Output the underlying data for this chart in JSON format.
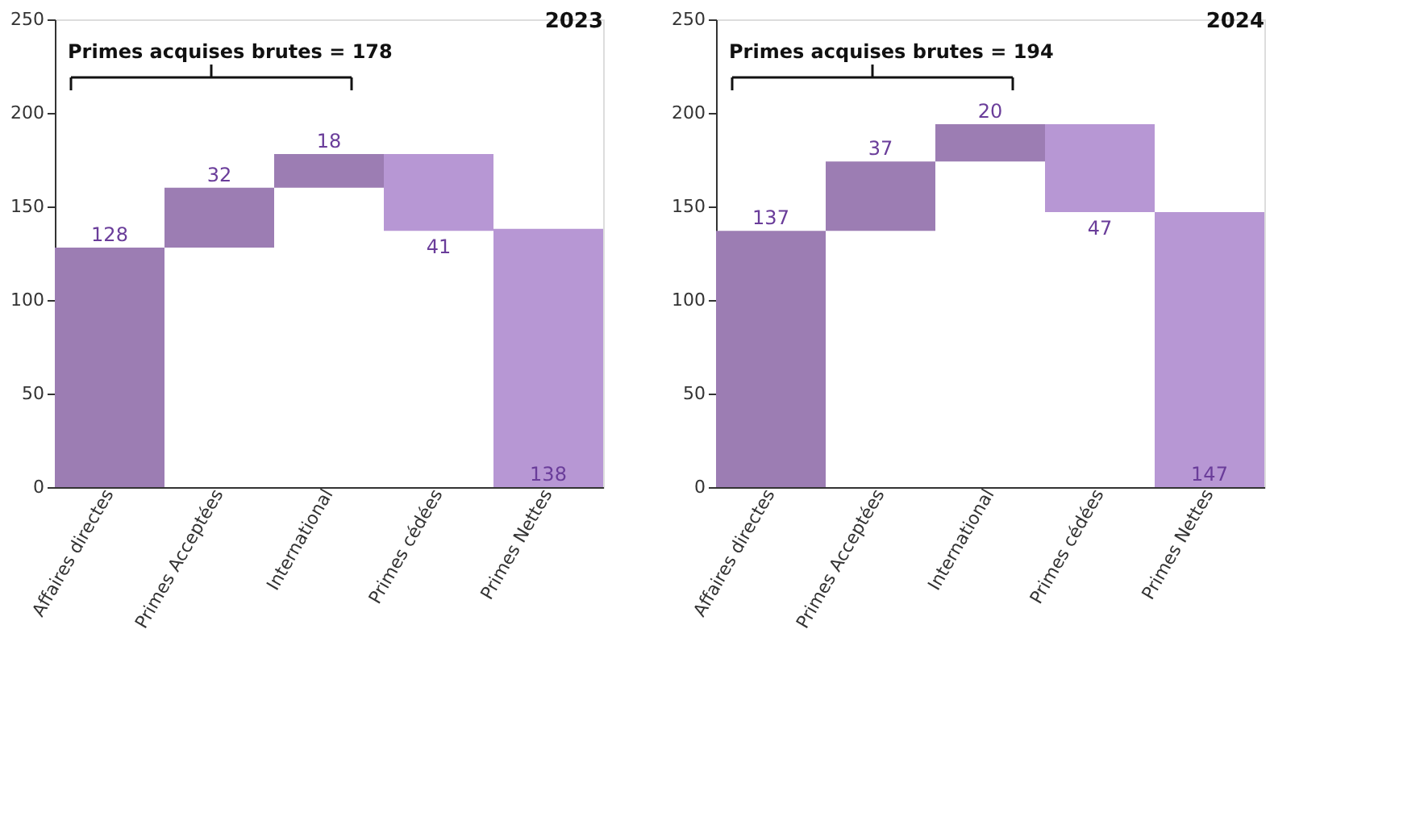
{
  "chart_data": [
    {
      "type": "bar",
      "title": "2023",
      "categories": [
        "Affaires directes",
        "Primes Acceptées",
        "International",
        "Primes cédées",
        "Primes Nettes"
      ],
      "values": [
        128,
        32,
        18,
        -41,
        138
      ],
      "base": [
        0,
        128,
        160,
        178,
        0
      ],
      "colors": [
        "#9c7db3",
        "#9c7db3",
        "#9c7db3",
        "#b797d4",
        "#b797d4"
      ],
      "value_labels": [
        "128",
        "32",
        "18",
        "41",
        "138"
      ],
      "ylim": [
        0,
        250
      ],
      "yticks": [
        0,
        50,
        100,
        150,
        200,
        250
      ],
      "annotations": [
        "Primes acquises brutes = 178"
      ]
    },
    {
      "type": "bar",
      "title": "2024",
      "categories": [
        "Affaires directes",
        "Primes Acceptées",
        "International",
        "Primes cédées",
        "Primes Nettes"
      ],
      "values": [
        137,
        37,
        20,
        -47,
        147
      ],
      "base": [
        0,
        137,
        174,
        194,
        0
      ],
      "colors": [
        "#9c7db3",
        "#9c7db3",
        "#9c7db3",
        "#b797d4",
        "#b797d4"
      ],
      "value_labels": [
        "137",
        "37",
        "20",
        "47",
        "147"
      ],
      "ylim": [
        0,
        250
      ],
      "yticks": [
        0,
        50,
        100,
        150,
        200,
        250
      ],
      "annotations": [
        "Primes acquises brutes = 194"
      ]
    }
  ]
}
